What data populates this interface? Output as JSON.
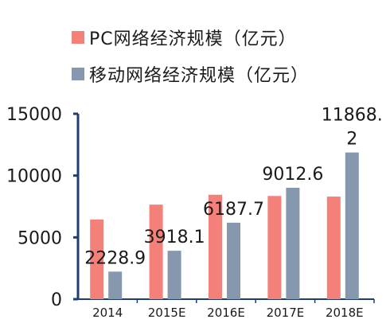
{
  "colors": {
    "pc": "#f4807a",
    "mobile": "#8598ad",
    "axis": "#1f3f73",
    "text": "#1a1a1a"
  },
  "legend": {
    "pc_label": "PC网络经济规模（亿元）",
    "mobile_label": "移动网络经济规模（亿元）"
  },
  "chart_data": {
    "type": "bar",
    "categories": [
      "2014",
      "2015E",
      "2016E",
      "2017E",
      "2018E"
    ],
    "series": [
      {
        "name": "PC网络经济规模（亿元）",
        "values": [
          6450,
          7650,
          8450,
          8350,
          8300
        ]
      },
      {
        "name": "移动网络经济规模（亿元）",
        "values": [
          2228.9,
          3918.1,
          6187.7,
          9012.6,
          11868.2
        ]
      }
    ],
    "data_labels": [
      [
        "2228.9"
      ],
      [
        "3918.1"
      ],
      [
        "6187.7"
      ],
      [
        "9012.6"
      ],
      [
        "11868.",
        "2"
      ]
    ],
    "y_ticks": [
      "0",
      "5000",
      "10000",
      "15000"
    ],
    "ylim": [
      0,
      15000
    ],
    "grid": false,
    "legend_position": "top"
  }
}
